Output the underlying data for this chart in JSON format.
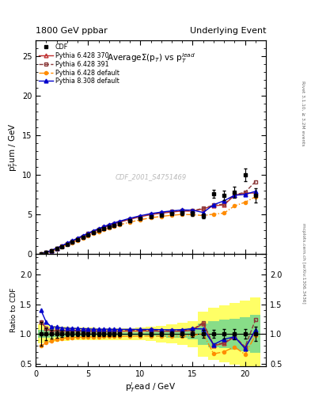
{
  "title_left": "1800 GeV ppbar",
  "title_right": "Underlying Event",
  "plot_title": "AverageΣ(p$_T$) vs p$_T^{lead}$",
  "xlabel": "p$_T^l$ead / GeV",
  "ylabel_main": "p$_T^s$um / GeV",
  "ylabel_ratio": "Ratio to CDF",
  "watermark": "CDF_2001_S4751469",
  "right_label_top": "Rivet 3.1.10, ≥ 3.2M events",
  "right_label_bot": "mcplots.cern.ch [arXiv:1306.3436]",
  "xdata": [
    0.5,
    1.0,
    1.5,
    2.0,
    2.5,
    3.0,
    3.5,
    4.0,
    4.5,
    5.0,
    5.5,
    6.0,
    6.5,
    7.0,
    7.5,
    8.0,
    9.0,
    10.0,
    11.0,
    12.0,
    13.0,
    14.0,
    15.0,
    16.0,
    17.0,
    18.0,
    19.0,
    20.0,
    21.0
  ],
  "cdf_y": [
    0.05,
    0.2,
    0.42,
    0.68,
    0.97,
    1.26,
    1.55,
    1.85,
    2.15,
    2.44,
    2.72,
    2.98,
    3.22,
    3.45,
    3.66,
    3.85,
    4.2,
    4.5,
    4.75,
    4.95,
    5.1,
    5.2,
    5.1,
    4.85,
    7.6,
    7.4,
    7.8,
    10.0,
    7.4
  ],
  "cdf_yerr": [
    0.01,
    0.02,
    0.03,
    0.04,
    0.05,
    0.05,
    0.06,
    0.07,
    0.08,
    0.08,
    0.09,
    0.1,
    0.11,
    0.12,
    0.12,
    0.13,
    0.14,
    0.15,
    0.17,
    0.19,
    0.22,
    0.25,
    0.28,
    0.32,
    0.52,
    0.58,
    0.68,
    0.78,
    0.88
  ],
  "py6_370_y": [
    0.06,
    0.22,
    0.44,
    0.72,
    1.02,
    1.32,
    1.63,
    1.94,
    2.25,
    2.55,
    2.84,
    3.11,
    3.37,
    3.61,
    3.83,
    4.03,
    4.4,
    4.72,
    4.99,
    5.17,
    5.32,
    5.44,
    5.42,
    5.72,
    6.1,
    6.22,
    7.42,
    7.72,
    7.72
  ],
  "py6_391_y": [
    0.06,
    0.22,
    0.44,
    0.72,
    1.03,
    1.34,
    1.65,
    1.96,
    2.27,
    2.58,
    2.87,
    3.14,
    3.4,
    3.65,
    3.87,
    4.07,
    4.45,
    4.77,
    5.05,
    5.23,
    5.39,
    5.51,
    5.49,
    5.79,
    6.19,
    6.31,
    7.51,
    7.81,
    9.16
  ],
  "py6_def_y": [
    0.04,
    0.17,
    0.37,
    0.62,
    0.9,
    1.18,
    1.46,
    1.75,
    2.04,
    2.32,
    2.59,
    2.84,
    3.08,
    3.3,
    3.51,
    3.7,
    4.04,
    4.34,
    4.59,
    4.77,
    4.91,
    5.02,
    4.98,
    4.88,
    5.05,
    5.18,
    6.1,
    6.55,
    7.25
  ],
  "py8_def_y": [
    0.07,
    0.24,
    0.47,
    0.76,
    1.07,
    1.38,
    1.7,
    2.02,
    2.34,
    2.65,
    2.94,
    3.22,
    3.48,
    3.73,
    3.95,
    4.15,
    4.53,
    4.85,
    5.12,
    5.31,
    5.46,
    5.58,
    5.56,
    5.26,
    6.24,
    6.74,
    7.44,
    7.54,
    7.94
  ],
  "color_py6_370": "#c03030",
  "color_py6_391": "#8B3A3A",
  "color_py6_def": "#ff8c00",
  "color_py8_def": "#0000cc",
  "xlim": [
    0,
    22
  ],
  "ylim_main": [
    0,
    27
  ],
  "ylim_ratio": [
    0.45,
    2.35
  ],
  "green_band_lo": [
    0.93,
    0.93,
    0.94,
    0.95,
    0.95,
    0.96,
    0.96,
    0.96,
    0.96,
    0.97,
    0.97,
    0.97,
    0.97,
    0.97,
    0.97,
    0.97,
    0.97,
    0.97,
    0.96,
    0.95,
    0.94,
    0.93,
    0.91,
    0.82,
    0.78,
    0.76,
    0.74,
    0.71,
    0.68
  ],
  "green_band_hi": [
    1.07,
    1.07,
    1.06,
    1.05,
    1.05,
    1.04,
    1.04,
    1.04,
    1.04,
    1.03,
    1.03,
    1.03,
    1.03,
    1.03,
    1.03,
    1.03,
    1.03,
    1.03,
    1.04,
    1.05,
    1.06,
    1.07,
    1.09,
    1.18,
    1.22,
    1.24,
    1.26,
    1.29,
    1.32
  ],
  "yellow_band_lo": [
    0.84,
    0.85,
    0.86,
    0.87,
    0.88,
    0.88,
    0.89,
    0.89,
    0.89,
    0.89,
    0.89,
    0.9,
    0.9,
    0.9,
    0.9,
    0.9,
    0.9,
    0.89,
    0.88,
    0.86,
    0.84,
    0.81,
    0.78,
    0.62,
    0.56,
    0.52,
    0.48,
    0.43,
    0.38
  ],
  "yellow_band_hi": [
    1.16,
    1.15,
    1.14,
    1.13,
    1.12,
    1.12,
    1.11,
    1.11,
    1.11,
    1.11,
    1.11,
    1.1,
    1.1,
    1.1,
    1.1,
    1.1,
    1.1,
    1.11,
    1.12,
    1.14,
    1.16,
    1.19,
    1.22,
    1.38,
    1.44,
    1.48,
    1.52,
    1.57,
    1.62
  ]
}
